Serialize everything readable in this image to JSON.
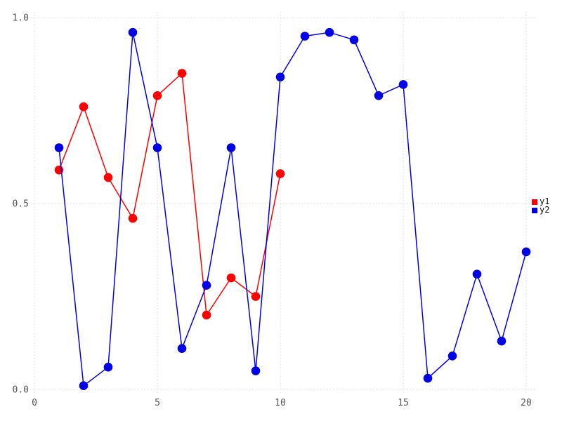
{
  "chart_data": {
    "type": "line",
    "title": "",
    "xlabel": "",
    "ylabel": "",
    "xlim": [
      -0.31,
      20.4
    ],
    "ylim": [
      -0.015,
      1.015
    ],
    "x_ticks": [
      0,
      5,
      10,
      15,
      20
    ],
    "x_tick_labels": [
      "0",
      "5",
      "10",
      "15",
      "20"
    ],
    "y_ticks": [
      0.0,
      0.5,
      1.0
    ],
    "y_tick_labels": [
      "0.0",
      "0.5",
      "1.0"
    ],
    "grid": "dotted",
    "legend_position": "right-center",
    "marker": "circle",
    "series": [
      {
        "name": "y1",
        "color": "#ff0000",
        "x": [
          1,
          2,
          3,
          4,
          5,
          6,
          7,
          8,
          9,
          10
        ],
        "values": [
          0.59,
          0.76,
          0.57,
          0.46,
          0.79,
          0.85,
          0.2,
          0.3,
          0.25,
          0.58
        ]
      },
      {
        "name": "y2",
        "color": "#0000e6",
        "x": [
          1,
          2,
          3,
          4,
          5,
          6,
          7,
          8,
          9,
          10,
          11,
          12,
          13,
          14,
          15,
          16,
          17,
          18,
          19,
          20
        ],
        "values": [
          0.65,
          0.01,
          0.06,
          0.96,
          0.65,
          0.11,
          0.28,
          0.65,
          0.05,
          0.84,
          0.95,
          0.96,
          0.94,
          0.79,
          0.82,
          0.03,
          0.09,
          0.31,
          0.13,
          0.37
        ]
      }
    ]
  },
  "legend": {
    "items": [
      {
        "label": "y1",
        "color": "#ff0000"
      },
      {
        "label": "y2",
        "color": "#0000e6"
      }
    ]
  },
  "style": {
    "grid_color": "#dcdcdc",
    "tick_label_color": "#545454",
    "background": "#ffffff"
  }
}
